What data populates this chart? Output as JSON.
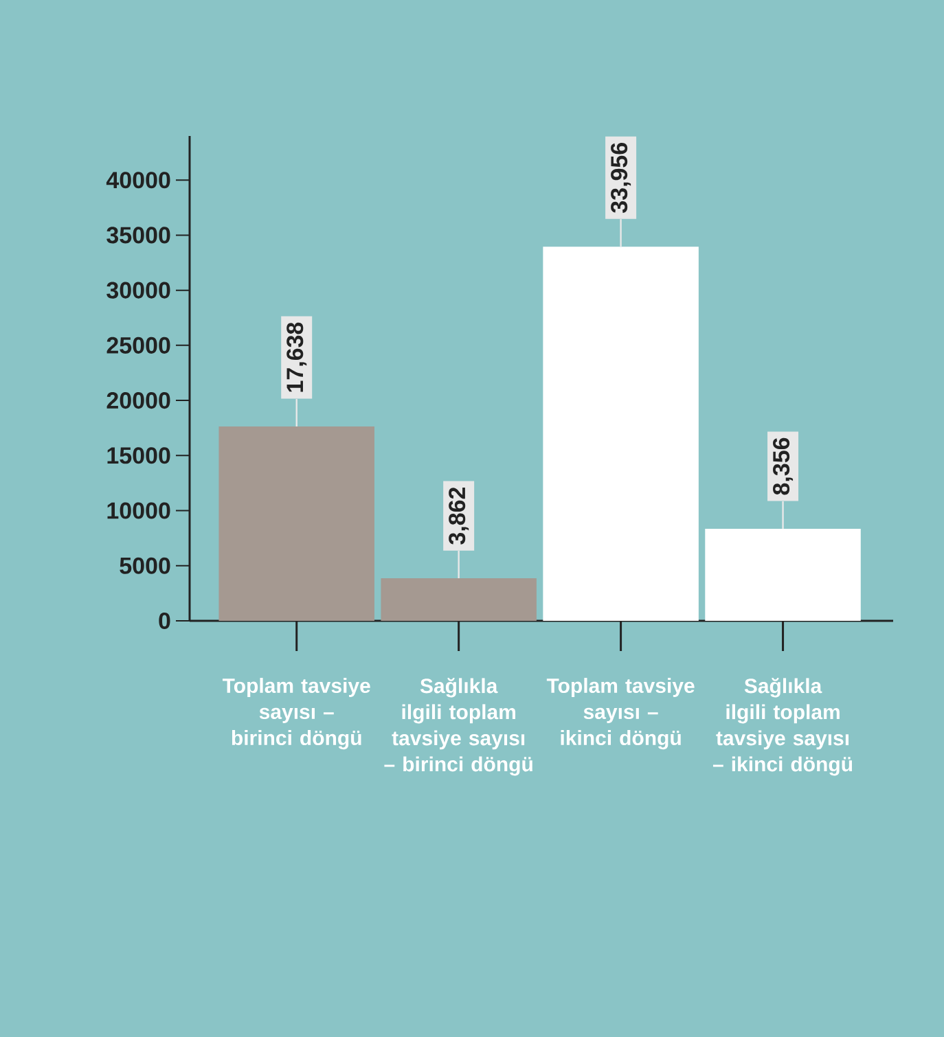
{
  "chart_data": {
    "type": "bar",
    "categories": [
      "Toplam tavsiye sayısı – birinci döngü",
      "Sağlıkla ilgili toplam tavsiye sayısı – birinci döngü",
      "Toplam tavsiye sayısı – ikinci döngü",
      "Sağlıkla ilgili toplam tavsiye sayısı – ikinci döngü"
    ],
    "values": [
      17638,
      3862,
      33956,
      8356
    ],
    "value_labels": [
      "17,638",
      "3,862",
      "33,956",
      "8,356"
    ],
    "colors": [
      "#a59991",
      "#a59991",
      "#ffffff",
      "#ffffff"
    ],
    "ylim": [
      0,
      44000
    ],
    "yticks": [
      0,
      5000,
      10000,
      15000,
      20000,
      25000,
      30000,
      35000,
      40000
    ],
    "grid": false
  }
}
